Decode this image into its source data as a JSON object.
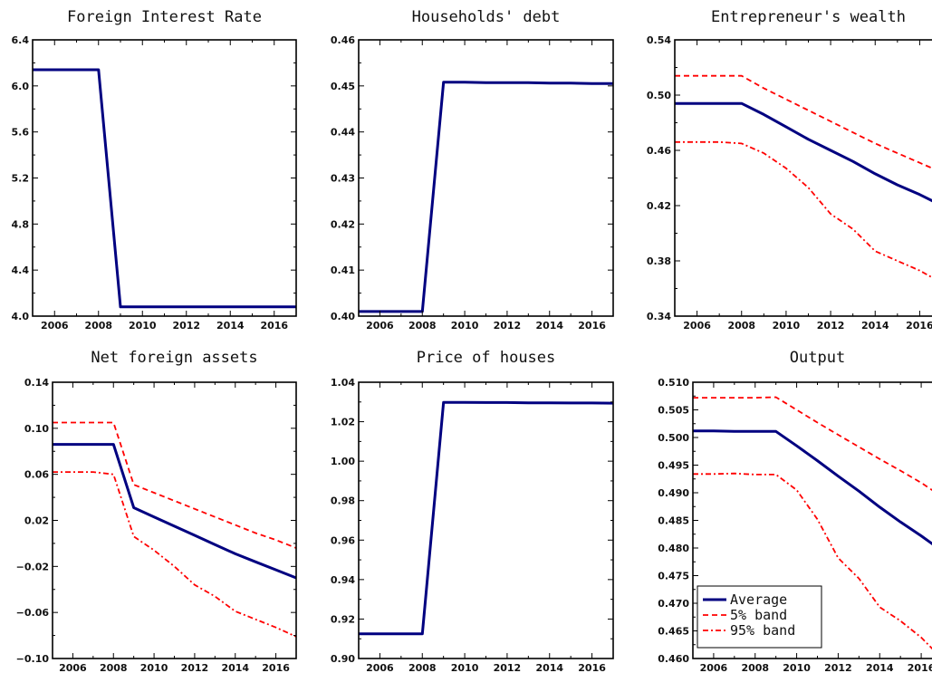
{
  "colors": {
    "average": "#000080",
    "band": "#ff0000",
    "axis": "#000000"
  },
  "chart_data": [
    {
      "id": "foreign-interest-rate",
      "type": "line",
      "title": "Foreign Interest Rate",
      "xlabel": "",
      "ylabel": "",
      "xlim": [
        2005,
        2017
      ],
      "ylim": [
        4.0,
        6.4
      ],
      "xticks": [
        2006,
        2008,
        2010,
        2012,
        2014,
        2016
      ],
      "yticks": [
        4.0,
        4.4,
        4.8,
        5.2,
        5.6,
        6.0,
        6.4
      ],
      "ytick_labels": [
        "4.0",
        "4.4",
        "4.8",
        "5.2",
        "5.6",
        "6.0",
        "6.4"
      ],
      "x": [
        2005,
        2006,
        2007,
        2008,
        2009,
        2010,
        2011,
        2012,
        2013,
        2014,
        2015,
        2016,
        2017
      ],
      "series": [
        {
          "role": "average",
          "values": [
            6.14,
            6.14,
            6.14,
            6.14,
            4.08,
            4.08,
            4.08,
            4.08,
            4.08,
            4.08,
            4.08,
            4.08,
            4.08
          ]
        }
      ]
    },
    {
      "id": "households-debt",
      "type": "line",
      "title": "Households' debt",
      "xlabel": "",
      "ylabel": "",
      "xlim": [
        2005,
        2017
      ],
      "ylim": [
        0.4,
        0.46
      ],
      "xticks": [
        2006,
        2008,
        2010,
        2012,
        2014,
        2016
      ],
      "yticks": [
        0.4,
        0.41,
        0.42,
        0.43,
        0.44,
        0.45,
        0.46
      ],
      "ytick_labels": [
        "0.40",
        "0.41",
        "0.42",
        "0.43",
        "0.44",
        "0.45",
        "0.46"
      ],
      "x": [
        2005,
        2006,
        2007,
        2008,
        2009,
        2010,
        2011,
        2012,
        2013,
        2014,
        2015,
        2016,
        2017
      ],
      "series": [
        {
          "role": "average",
          "values": [
            0.401,
            0.401,
            0.401,
            0.401,
            0.4508,
            0.4508,
            0.4507,
            0.4507,
            0.4507,
            0.4506,
            0.4506,
            0.4505,
            0.4505
          ]
        },
        {
          "role": "band5",
          "values": [
            0.401,
            0.401,
            0.401,
            0.401,
            0.4508,
            0.4508,
            0.4507,
            0.4507,
            0.4507,
            0.4506,
            0.4506,
            0.4505,
            0.4505
          ]
        },
        {
          "role": "band95",
          "values": [
            0.401,
            0.401,
            0.401,
            0.401,
            0.4508,
            0.4508,
            0.4507,
            0.4507,
            0.4507,
            0.4506,
            0.4506,
            0.4505,
            0.4505
          ]
        }
      ]
    },
    {
      "id": "entrepreneurs-wealth",
      "type": "line",
      "title": "Entrepreneur's wealth",
      "xlabel": "",
      "ylabel": "",
      "xlim": [
        2005,
        2017
      ],
      "ylim": [
        0.34,
        0.54
      ],
      "xticks": [
        2006,
        2008,
        2010,
        2012,
        2014,
        2016
      ],
      "yticks": [
        0.34,
        0.38,
        0.42,
        0.46,
        0.5,
        0.54
      ],
      "ytick_labels": [
        "0.34",
        "0.38",
        "0.42",
        "0.46",
        "0.50",
        "0.54"
      ],
      "x": [
        2005,
        2006,
        2007,
        2008,
        2009,
        2010,
        2011,
        2012,
        2013,
        2014,
        2015,
        2016,
        2017
      ],
      "series": [
        {
          "role": "average",
          "values": [
            0.494,
            0.494,
            0.494,
            0.494,
            0.486,
            0.477,
            0.468,
            0.46,
            0.452,
            0.443,
            0.435,
            0.428,
            0.42
          ]
        },
        {
          "role": "band5",
          "values": [
            0.514,
            0.514,
            0.514,
            0.514,
            0.505,
            0.497,
            0.489,
            0.481,
            0.473,
            0.465,
            0.458,
            0.451,
            0.444
          ]
        },
        {
          "role": "band95",
          "values": [
            0.466,
            0.466,
            0.466,
            0.465,
            0.458,
            0.447,
            0.433,
            0.414,
            0.403,
            0.387,
            0.38,
            0.373,
            0.364
          ]
        }
      ]
    },
    {
      "id": "net-foreign-assets",
      "type": "line",
      "title": "Net foreign assets",
      "xlabel": "",
      "ylabel": "",
      "xlim": [
        2005,
        2017
      ],
      "ylim": [
        -0.1,
        0.14
      ],
      "xticks": [
        2006,
        2008,
        2010,
        2012,
        2014,
        2016
      ],
      "yticks": [
        -0.1,
        -0.06,
        -0.02,
        0.02,
        0.06,
        0.1,
        0.14
      ],
      "ytick_labels": [
        "−0.10",
        "−0.06",
        "−0.02",
        "0.02",
        "0.06",
        "0.10",
        "0.14"
      ],
      "x": [
        2005,
        2006,
        2007,
        2008,
        2009,
        2010,
        2011,
        2012,
        2013,
        2014,
        2015,
        2016,
        2017
      ],
      "series": [
        {
          "role": "average",
          "values": [
            0.086,
            0.086,
            0.086,
            0.086,
            0.031,
            0.023,
            0.015,
            0.007,
            -0.001,
            -0.009,
            -0.016,
            -0.023,
            -0.03
          ]
        },
        {
          "role": "band5",
          "values": [
            0.105,
            0.105,
            0.105,
            0.105,
            0.051,
            0.044,
            0.037,
            0.03,
            0.023,
            0.016,
            0.009,
            0.003,
            -0.004
          ]
        },
        {
          "role": "band95",
          "values": [
            0.062,
            0.062,
            0.062,
            0.06,
            0.006,
            -0.006,
            -0.02,
            -0.036,
            -0.046,
            -0.059,
            -0.066,
            -0.073,
            -0.081
          ]
        }
      ]
    },
    {
      "id": "price-of-houses",
      "type": "line",
      "title": "Price of houses",
      "xlabel": "",
      "ylabel": "",
      "xlim": [
        2005,
        2017
      ],
      "ylim": [
        0.9,
        1.04
      ],
      "xticks": [
        2006,
        2008,
        2010,
        2012,
        2014,
        2016
      ],
      "yticks": [
        0.9,
        0.92,
        0.94,
        0.96,
        0.98,
        1.0,
        1.02,
        1.04
      ],
      "ytick_labels": [
        "0.90",
        "0.92",
        "0.94",
        "0.96",
        "0.98",
        "1.00",
        "1.02",
        "1.04"
      ],
      "x": [
        2005,
        2006,
        2007,
        2008,
        2009,
        2010,
        2011,
        2012,
        2013,
        2014,
        2015,
        2016,
        2017
      ],
      "series": [
        {
          "role": "average",
          "values": [
            0.9125,
            0.9125,
            0.9125,
            0.9125,
            1.0298,
            1.0298,
            1.0297,
            1.0297,
            1.0296,
            1.0296,
            1.0295,
            1.0295,
            1.0294
          ]
        },
        {
          "role": "band5",
          "values": [
            0.9125,
            0.9125,
            0.9125,
            0.9125,
            1.0298,
            1.0298,
            1.0297,
            1.0297,
            1.0296,
            1.0296,
            1.0295,
            1.0295,
            1.0294
          ]
        },
        {
          "role": "band95",
          "values": [
            0.9125,
            0.9125,
            0.9125,
            0.9125,
            1.0298,
            1.0298,
            1.0297,
            1.0297,
            1.0296,
            1.0296,
            1.0295,
            1.0295,
            1.0294
          ]
        }
      ]
    },
    {
      "id": "output",
      "type": "line",
      "title": "Output",
      "xlabel": "",
      "ylabel": "",
      "xlim": [
        2005,
        2017
      ],
      "ylim": [
        0.46,
        0.51
      ],
      "xticks": [
        2006,
        2008,
        2010,
        2012,
        2014,
        2016
      ],
      "yticks": [
        0.46,
        0.465,
        0.47,
        0.475,
        0.48,
        0.485,
        0.49,
        0.495,
        0.5,
        0.505,
        0.51
      ],
      "ytick_labels": [
        "0.460",
        "0.465",
        "0.470",
        "0.475",
        "0.480",
        "0.485",
        "0.490",
        "0.495",
        "0.500",
        "0.505",
        "0.510"
      ],
      "x": [
        2005,
        2006,
        2007,
        2008,
        2009,
        2010,
        2011,
        2012,
        2013,
        2014,
        2015,
        2016,
        2017
      ],
      "series": [
        {
          "role": "average",
          "values": [
            0.5012,
            0.5012,
            0.5011,
            0.5011,
            0.5011,
            0.4985,
            0.4958,
            0.493,
            0.4903,
            0.4874,
            0.4847,
            0.4822,
            0.4795
          ]
        },
        {
          "role": "band5",
          "values": [
            0.5072,
            0.5072,
            0.5072,
            0.5072,
            0.5073,
            0.505,
            0.5027,
            0.5005,
            0.4983,
            0.4961,
            0.494,
            0.4918,
            0.4893
          ]
        },
        {
          "role": "band95",
          "values": [
            0.4934,
            0.4934,
            0.4935,
            0.4933,
            0.4933,
            0.4905,
            0.4852,
            0.4782,
            0.4745,
            0.4693,
            0.4668,
            0.4638,
            0.46
          ]
        }
      ]
    }
  ],
  "legend": {
    "placement": "bottom-left of Output panel",
    "entries": [
      {
        "role": "average",
        "label": "Average"
      },
      {
        "role": "band5",
        "label": "5% band"
      },
      {
        "role": "band95",
        "label": "95% band"
      }
    ]
  }
}
